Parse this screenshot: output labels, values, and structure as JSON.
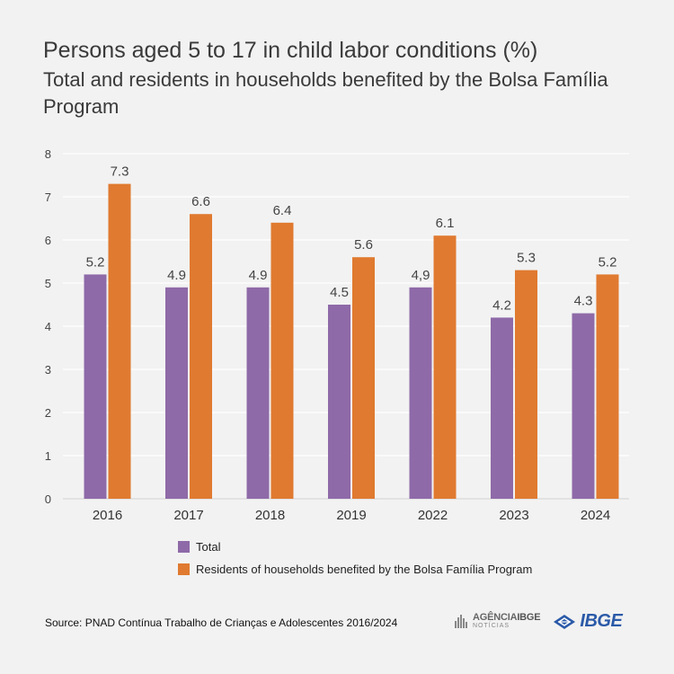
{
  "header": {
    "title": "Persons aged 5 to 17 in child labor conditions (%)",
    "subtitle": "Total and residents in households benefited by the Bolsa Família Program"
  },
  "chart_data": {
    "type": "bar",
    "title": "Persons aged 5 to 17 in child labor conditions (%)",
    "subtitle": "Total and residents in households benefited by the Bolsa Família Program",
    "xlabel": "",
    "ylabel": "",
    "categories": [
      "2016",
      "2017",
      "2018",
      "2019",
      "2022",
      "2023",
      "2024"
    ],
    "series": [
      {
        "name": "Total",
        "values": [
          5.2,
          4.9,
          4.9,
          4.5,
          4.9,
          4.2,
          4.3
        ],
        "labels": [
          "5.2",
          "4.9",
          "4.9",
          "4.5",
          "4,9",
          "4.2",
          "4.3"
        ],
        "color": "#8e6aa8"
      },
      {
        "name": "Residents of households benefited by the Bolsa Família Program",
        "values": [
          7.3,
          6.6,
          6.4,
          5.6,
          6.1,
          5.3,
          5.2
        ],
        "labels": [
          "7.3",
          "6.6",
          "6.4",
          "5.6",
          "6.1",
          "5.3",
          "5.2"
        ],
        "color": "#e07a30"
      }
    ],
    "ylim": [
      0,
      8
    ],
    "yticks": [
      "0",
      "1",
      "2",
      "3",
      "4",
      "5",
      "6",
      "7",
      "8"
    ],
    "grid": true,
    "legend_position": "bottom"
  },
  "footer": {
    "source": "Source: PNAD Contínua Trabalho de Crianças e Adolescentes 2016/2024",
    "agencia_name": "AGÊNCIA",
    "agencia_brand": "IBGE",
    "agencia_sub": "NOTÍCIAS",
    "ibge_logo_text": "IBGE"
  }
}
